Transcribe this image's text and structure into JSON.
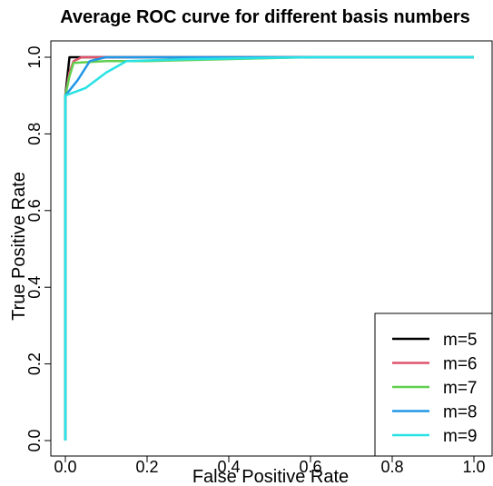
{
  "chart_data": {
    "type": "line",
    "title": "Average ROC curve for different basis numbers",
    "xlabel": "False Positive Rate",
    "ylabel": "True Positive Rate",
    "xlim": [
      0,
      1
    ],
    "ylim": [
      0,
      1
    ],
    "xticks": [
      0.0,
      0.2,
      0.4,
      0.6,
      0.8,
      1.0
    ],
    "xtick_labels": [
      "0.0",
      "0.2",
      "0.4",
      "0.6",
      "0.8",
      "1.0"
    ],
    "yticks": [
      0.0,
      0.2,
      0.4,
      0.6,
      0.8,
      1.0
    ],
    "ytick_labels": [
      "0.0",
      "0.2",
      "0.4",
      "0.6",
      "0.8",
      "1.0"
    ],
    "grid": false,
    "legend_position": "bottom-right",
    "series": [
      {
        "name": "m=5",
        "color": "#000000",
        "x": [
          0,
          0,
          0.01,
          1.0
        ],
        "y": [
          0,
          0.9,
          1.0,
          1.0
        ]
      },
      {
        "name": "m=6",
        "color": "#df536b",
        "x": [
          0,
          0,
          0.01,
          0.02,
          0.04,
          1.0
        ],
        "y": [
          0,
          0.9,
          0.96,
          0.99,
          1.0,
          1.0
        ]
      },
      {
        "name": "m=7",
        "color": "#61d04f",
        "x": [
          0,
          0,
          0.01,
          0.02,
          0.1,
          0.2,
          0.6,
          1.0
        ],
        "y": [
          0,
          0.9,
          0.95,
          0.985,
          0.99,
          0.99,
          1.0,
          1.0
        ]
      },
      {
        "name": "m=8",
        "color": "#2297e6",
        "x": [
          0,
          0,
          0.03,
          0.06,
          0.1,
          1.0
        ],
        "y": [
          0,
          0.9,
          0.94,
          0.99,
          1.0,
          1.0
        ]
      },
      {
        "name": "m=9",
        "color": "#28e2e5",
        "x": [
          0,
          0,
          0.05,
          0.1,
          0.15,
          0.3,
          0.6,
          1.0
        ],
        "y": [
          0,
          0.9,
          0.92,
          0.96,
          0.99,
          0.995,
          1.0,
          1.0
        ]
      }
    ]
  }
}
